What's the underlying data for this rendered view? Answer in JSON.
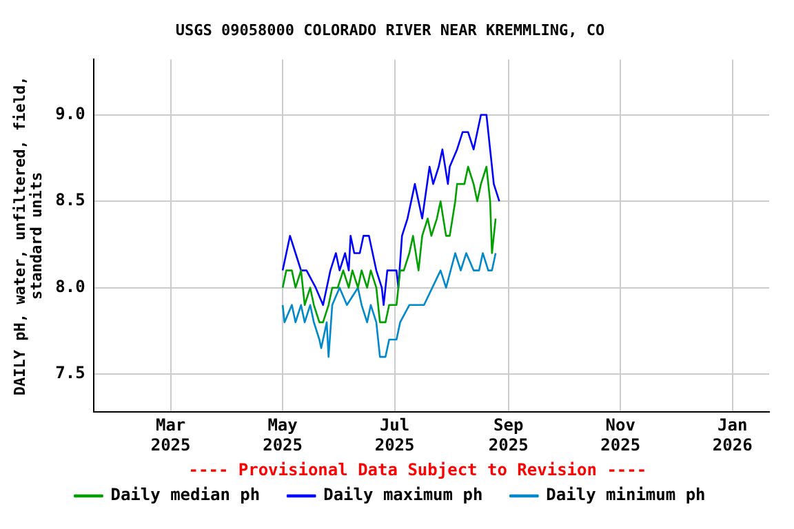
{
  "chart_data": {
    "type": "line",
    "title": "USGS 09058000 COLORADO RIVER NEAR KREMMLING, CO",
    "ylabel": "DAILY pH, water, unfiltered, field, standard units",
    "annotations": [
      "---- Provisional Data Subject to Revision ----"
    ],
    "xlim": [
      "2025-01-18",
      "2026-01-21"
    ],
    "xticks": [
      {
        "value": "2025-03-01",
        "label": "Mar 2025"
      },
      {
        "value": "2025-05-01",
        "label": "May 2025"
      },
      {
        "value": "2025-07-01",
        "label": "Jul 2025"
      },
      {
        "value": "2025-09-01",
        "label": "Sep 2025"
      },
      {
        "value": "2025-11-01",
        "label": "Nov 2025"
      },
      {
        "value": "2026-01-01",
        "label": "Jan 2026"
      }
    ],
    "ylim": [
      7.28,
      9.32
    ],
    "yticks": [
      {
        "value": 7.5,
        "label": "7.5"
      },
      {
        "value": 8,
        "label": "8.0"
      },
      {
        "value": 8.5,
        "label": "8.5"
      },
      {
        "value": 9,
        "label": "9.0"
      }
    ],
    "grid": true,
    "legend": "bottom",
    "marker": "none",
    "line_style": "solid",
    "series": [
      {
        "name": "Daily median ph",
        "color": "#00a000",
        "x": [
          "2025-05-01",
          "2025-05-03",
          "2025-05-06",
          "2025-05-08",
          "2025-05-11",
          "2025-05-13",
          "2025-05-16",
          "2025-05-18",
          "2025-05-21",
          "2025-05-23",
          "2025-05-26",
          "2025-05-28",
          "2025-05-31",
          "2025-06-03",
          "2025-06-06",
          "2025-06-08",
          "2025-06-11",
          "2025-06-13",
          "2025-06-16",
          "2025-06-18",
          "2025-06-21",
          "2025-06-23",
          "2025-06-26",
          "2025-06-28",
          "2025-07-02",
          "2025-07-04",
          "2025-07-06",
          "2025-07-09",
          "2025-07-11",
          "2025-07-14",
          "2025-07-16",
          "2025-07-19",
          "2025-07-21",
          "2025-07-24",
          "2025-07-26",
          "2025-07-29",
          "2025-07-31",
          "2025-08-03",
          "2025-08-04",
          "2025-08-08",
          "2025-08-10",
          "2025-08-13",
          "2025-08-15",
          "2025-08-17",
          "2025-08-20",
          "2025-08-22",
          "2025-08-23",
          "2025-08-25"
        ],
        "values": [
          8.0,
          8.1,
          8.1,
          8.0,
          8.1,
          7.9,
          8.0,
          7.9,
          7.8,
          7.8,
          7.9,
          8.0,
          8.0,
          8.1,
          8.0,
          8.1,
          8.0,
          8.1,
          8.0,
          8.1,
          8.0,
          7.8,
          7.8,
          7.9,
          7.9,
          8.1,
          8.1,
          8.2,
          8.3,
          8.1,
          8.3,
          8.4,
          8.3,
          8.4,
          8.5,
          8.3,
          8.3,
          8.5,
          8.6,
          8.6,
          8.7,
          8.6,
          8.5,
          8.6,
          8.7,
          8.5,
          8.2,
          8.4
        ]
      },
      {
        "name": "Daily maximum ph",
        "color": "#0000ff",
        "x": [
          "2025-05-01",
          "2025-05-05",
          "2025-05-08",
          "2025-05-11",
          "2025-05-14",
          "2025-05-19",
          "2025-05-23",
          "2025-05-25",
          "2025-05-27",
          "2025-05-30",
          "2025-06-01",
          "2025-06-04",
          "2025-06-06",
          "2025-06-07",
          "2025-06-09",
          "2025-06-12",
          "2025-06-14",
          "2025-06-17",
          "2025-06-21",
          "2025-06-24",
          "2025-06-25",
          "2025-06-27",
          "2025-07-02",
          "2025-07-03",
          "2025-07-05",
          "2025-07-08",
          "2025-07-10",
          "2025-07-12",
          "2025-07-16",
          "2025-07-20",
          "2025-07-22",
          "2025-07-25",
          "2025-07-27",
          "2025-07-30",
          "2025-07-31",
          "2025-08-04",
          "2025-08-07",
          "2025-08-10",
          "2025-08-13",
          "2025-08-17",
          "2025-08-20",
          "2025-08-22",
          "2025-08-24",
          "2025-08-27"
        ],
        "values": [
          8.1,
          8.3,
          8.2,
          8.1,
          8.1,
          8.0,
          7.9,
          8.0,
          8.1,
          8.2,
          8.1,
          8.2,
          8.1,
          8.3,
          8.2,
          8.2,
          8.3,
          8.3,
          8.1,
          8.0,
          7.9,
          8.1,
          8.1,
          8.0,
          8.3,
          8.4,
          8.5,
          8.6,
          8.4,
          8.7,
          8.6,
          8.7,
          8.8,
          8.6,
          8.7,
          8.8,
          8.9,
          8.9,
          8.8,
          9.0,
          9.0,
          8.8,
          8.6,
          8.5
        ]
      },
      {
        "name": "Daily minimum ph",
        "color": "#0088cc",
        "x": [
          "2025-05-01",
          "2025-05-02",
          "2025-05-06",
          "2025-05-08",
          "2025-05-11",
          "2025-05-13",
          "2025-05-16",
          "2025-05-18",
          "2025-05-21",
          "2025-05-22",
          "2025-05-25",
          "2025-05-26",
          "2025-05-28",
          "2025-06-01",
          "2025-06-05",
          "2025-06-11",
          "2025-06-13",
          "2025-06-16",
          "2025-06-18",
          "2025-06-21",
          "2025-06-23",
          "2025-06-26",
          "2025-06-28",
          "2025-07-02",
          "2025-07-04",
          "2025-07-09",
          "2025-07-14",
          "2025-07-17",
          "2025-07-26",
          "2025-07-29",
          "2025-08-03",
          "2025-08-06",
          "2025-08-09",
          "2025-08-13",
          "2025-08-16",
          "2025-08-18",
          "2025-08-21",
          "2025-08-23",
          "2025-08-25"
        ],
        "values": [
          7.9,
          7.8,
          7.9,
          7.8,
          7.9,
          7.8,
          7.9,
          7.8,
          7.7,
          7.65,
          7.8,
          7.6,
          7.9,
          8.0,
          7.9,
          8.0,
          7.9,
          7.8,
          7.9,
          7.8,
          7.6,
          7.6,
          7.7,
          7.7,
          7.8,
          7.9,
          7.9,
          7.9,
          8.1,
          8.0,
          8.2,
          8.1,
          8.2,
          8.1,
          8.1,
          8.2,
          8.1,
          8.1,
          8.2
        ]
      }
    ]
  }
}
